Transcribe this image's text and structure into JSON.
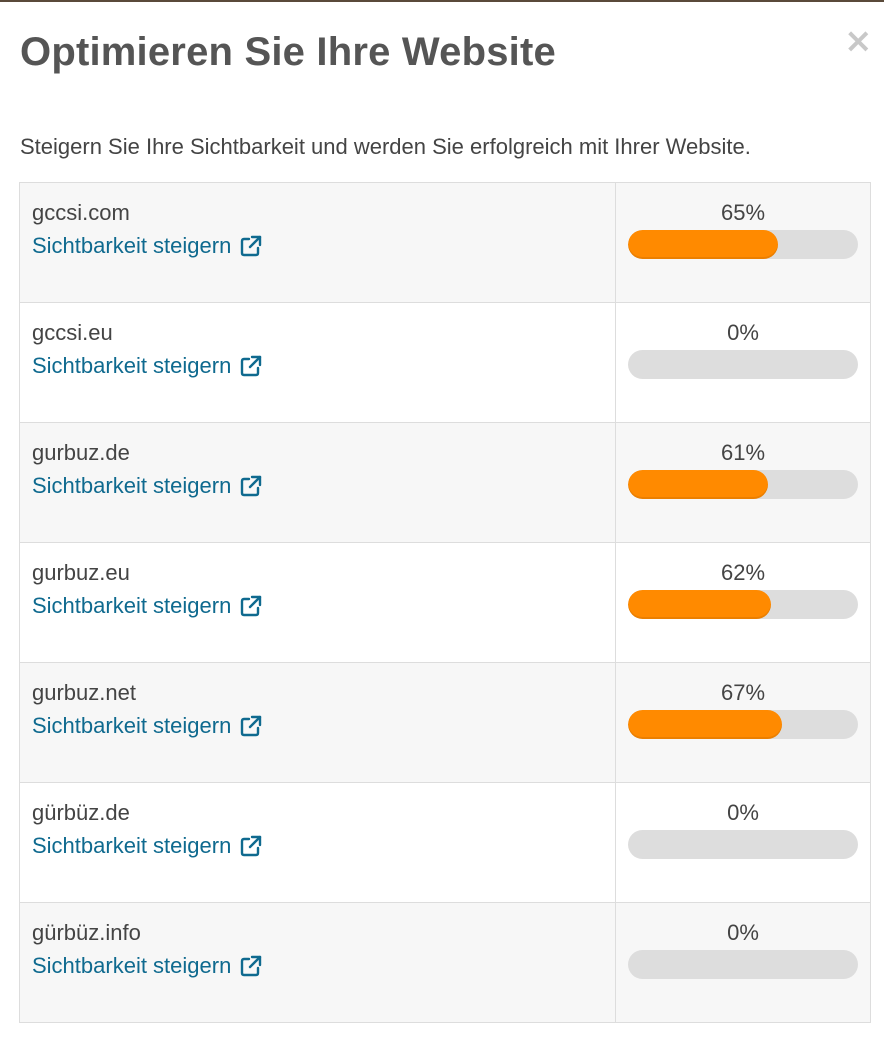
{
  "modal": {
    "title": "Optimieren Sie Ihre Website",
    "subtitle": "Steigern Sie Ihre Sichtbarkeit und werden Sie erfolgreich mit Ihrer Website.",
    "close_label": "×"
  },
  "colors": {
    "accent_fill": "#ff8a00",
    "bar_track": "#dddddd",
    "link": "#0f6a8f"
  },
  "rows": [
    {
      "domain": "gccsi.com",
      "link_label": "Sichtbarkeit steigern",
      "link_icon": "external-link-icon",
      "percent_label": "65%",
      "visibility": 65
    },
    {
      "domain": "gccsi.eu",
      "link_label": "Sichtbarkeit steigern",
      "link_icon": "external-link-icon",
      "percent_label": "0%",
      "visibility": 0
    },
    {
      "domain": "gurbuz.de",
      "link_label": "Sichtbarkeit steigern",
      "link_icon": "external-link-icon",
      "percent_label": "61%",
      "visibility": 61
    },
    {
      "domain": "gurbuz.eu",
      "link_label": "Sichtbarkeit steigern",
      "link_icon": "external-link-icon",
      "percent_label": "62%",
      "visibility": 62
    },
    {
      "domain": "gurbuz.net",
      "link_label": "Sichtbarkeit steigern",
      "link_icon": "external-link-icon",
      "percent_label": "67%",
      "visibility": 67
    },
    {
      "domain": "gürbüz.de",
      "link_label": "Sichtbarkeit steigern",
      "link_icon": "external-link-icon",
      "percent_label": "0%",
      "visibility": 0
    },
    {
      "domain": "gürbüz.info",
      "link_label": "Sichtbarkeit steigern",
      "link_icon": "external-link-icon",
      "percent_label": "0%",
      "visibility": 0
    }
  ]
}
